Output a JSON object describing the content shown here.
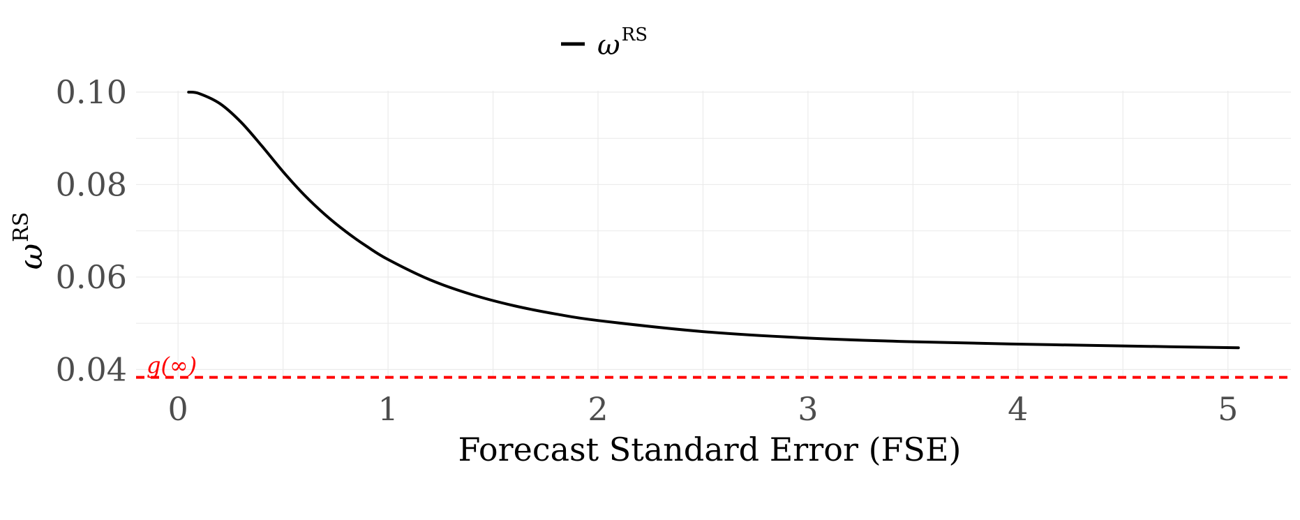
{
  "chart_data": {
    "type": "line",
    "legend": {
      "position": "top",
      "label": "ω",
      "label_sup": "RS"
    },
    "xlabel": "Forecast Standard Error (FSE)",
    "ylabel": "ω",
    "ylabel_sup": "RS",
    "xlim": [
      -0.2,
      5.3
    ],
    "ylim": [
      0.0384,
      0.1003
    ],
    "x_ticks": [
      0,
      1,
      2,
      3,
      4,
      5
    ],
    "x_tick_labels": [
      "0",
      "1",
      "2",
      "3",
      "4",
      "5"
    ],
    "y_ticks": [
      0.04,
      0.06,
      0.08,
      0.1
    ],
    "y_tick_labels": [
      "0.04",
      "0.06",
      "0.08",
      "0.10"
    ],
    "grid": true,
    "series": [
      {
        "name": "ω^RS",
        "color": "#000000",
        "x": [
          0.05,
          0.1,
          0.2,
          0.3,
          0.4,
          0.5,
          0.6,
          0.7,
          0.8,
          0.9,
          1.0,
          1.2,
          1.4,
          1.6,
          1.8,
          2.0,
          2.5,
          3.0,
          3.5,
          4.0,
          4.5,
          5.05
        ],
        "y": [
          0.1,
          0.0997,
          0.0975,
          0.0935,
          0.0883,
          0.0828,
          0.0778,
          0.0735,
          0.0698,
          0.0666,
          0.0638,
          0.0594,
          0.0562,
          0.0538,
          0.052,
          0.0506,
          0.0482,
          0.0468,
          0.046,
          0.0455,
          0.0451,
          0.0447
        ]
      }
    ],
    "reference_line": {
      "y": 0.0383,
      "color": "#ff0000",
      "style": "dashed",
      "label": "g(∞)"
    }
  }
}
